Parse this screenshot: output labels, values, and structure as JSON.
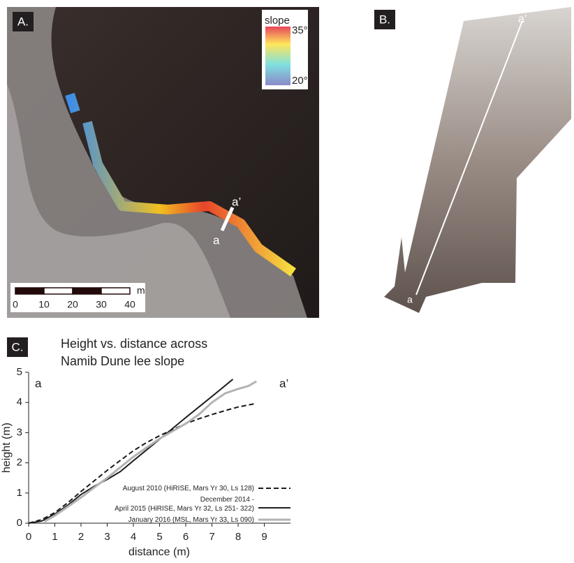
{
  "panel_a": {
    "label": "A.",
    "legend": {
      "title": "slope",
      "max": "35°",
      "min": "20°"
    },
    "profile": {
      "start": "a",
      "end": "a’"
    },
    "scale_bar": {
      "unit": "m",
      "ticks": [
        0,
        10,
        20,
        30,
        40
      ]
    }
  },
  "panel_b": {
    "label": "B.",
    "profile": {
      "start": "a",
      "end": "a’"
    }
  },
  "chart_data": {
    "type": "line",
    "panel_label": "C.",
    "title": [
      "Height vs. distance across",
      "Namib Dune lee slope"
    ],
    "corner_labels": [
      "a",
      "a’"
    ],
    "xlabel": "distance (m)",
    "ylabel": "height (m)",
    "xlim": [
      0,
      10
    ],
    "ylim": [
      0,
      5
    ],
    "xticks": [
      0,
      1,
      2,
      3,
      4,
      5,
      6,
      7,
      8,
      9
    ],
    "yticks": [
      0,
      1,
      2,
      3,
      4,
      5
    ],
    "series": [
      {
        "name": "August 2010 (HiRISE, Mars Yr 30, Ls 128)",
        "color": "#1a1a1a",
        "dash": true,
        "width": 2,
        "x": [
          0,
          0.5,
          1,
          1.5,
          2,
          2.5,
          3,
          3.5,
          4,
          4.5,
          5,
          5.5,
          6,
          6.5,
          7,
          7.5,
          8,
          8.7
        ],
        "values": [
          0,
          0.12,
          0.35,
          0.68,
          1.05,
          1.4,
          1.75,
          2.08,
          2.4,
          2.67,
          2.9,
          3.1,
          3.3,
          3.46,
          3.6,
          3.73,
          3.85,
          3.97
        ]
      },
      {
        "name": "December 2014 -\nApril 2015 (HiRISE, Mars Yr 32, Ls 251- 322)",
        "color": "#231f20",
        "dash": false,
        "width": 2,
        "x": [
          0,
          0.5,
          1,
          1.5,
          2,
          2.5,
          3,
          3.5,
          4,
          5,
          6,
          7,
          7.8
        ],
        "values": [
          0,
          0.07,
          0.3,
          0.6,
          0.95,
          1.22,
          1.45,
          1.71,
          2.07,
          2.78,
          3.5,
          4.2,
          4.77
        ]
      },
      {
        "name": "January 2016 (MSL, Mars Yr 33, Ls 090)",
        "color": "#b3b3b3",
        "dash": false,
        "width": 3,
        "x": [
          0.6,
          1,
          1.5,
          2,
          2.5,
          3,
          3.5,
          4,
          4.5,
          5,
          5.5,
          6,
          6.5,
          7,
          7.5,
          8,
          8.4,
          8.7
        ],
        "values": [
          0.05,
          0.25,
          0.55,
          0.85,
          1.18,
          1.5,
          1.85,
          2.2,
          2.5,
          2.8,
          3.05,
          3.3,
          3.6,
          4.0,
          4.3,
          4.45,
          4.55,
          4.7
        ]
      }
    ]
  }
}
